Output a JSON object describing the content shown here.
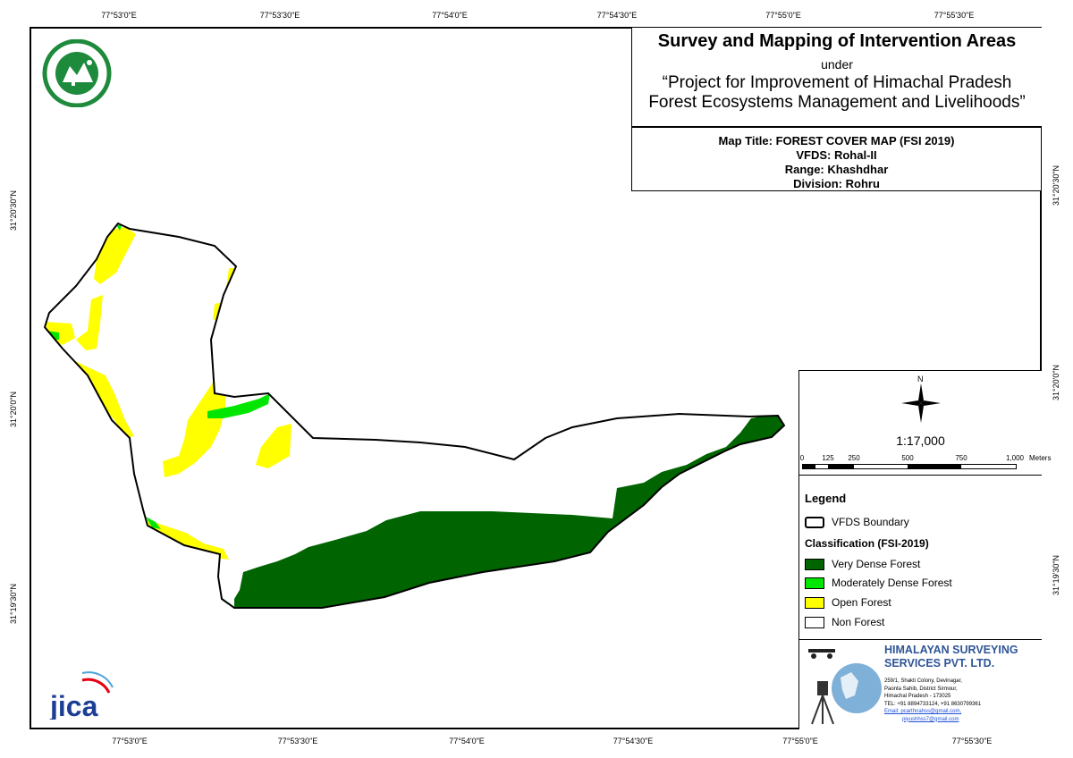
{
  "coords": {
    "top": [
      "77°53'0\"E",
      "77°53'30\"E",
      "77°54'0\"E",
      "77°54'30\"E",
      "77°55'0\"E",
      "77°55'30\"E"
    ],
    "bottom": [
      "77°53'0\"E",
      "77°53'30\"E",
      "77°54'0\"E",
      "77°54'30\"E",
      "77°55'0\"E",
      "77°55'30\"E"
    ],
    "left": [
      "31°20'30\"N",
      "31°20'0\"N",
      "31°19'30\"N"
    ],
    "right": [
      "31°20'30\"N",
      "31°20'0\"N",
      "31°19'30\"N"
    ]
  },
  "title": {
    "main": "Survey and Mapping of Intervention Areas",
    "under": "under",
    "project_line1": "“Project for Improvement of Himachal Pradesh",
    "project_line2": "Forest Ecosystems Management and Livelihoods”"
  },
  "info": {
    "map_title": "Map Title: FOREST COVER MAP (FSI 2019)",
    "vfds": "VFDS: Rohal-II",
    "range": "Range: Khashdhar",
    "division": "Division: Rohru"
  },
  "scale": {
    "north": "N",
    "ratio": "1:17,000",
    "labels": [
      "0",
      "125",
      "250",
      "500",
      "750",
      "1,000"
    ],
    "unit": "Meters"
  },
  "legend": {
    "title": "Legend",
    "boundary": "VFDS Boundary",
    "classification": "Classification (FSI-2019)",
    "classes": [
      {
        "label": "Very Dense Forest",
        "color": "#006400"
      },
      {
        "label": "Moderately Dense Forest",
        "color": "#00e600"
      },
      {
        "label": "Open Forest",
        "color": "#ffff00"
      },
      {
        "label": "Non Forest",
        "color": "#ffffff"
      }
    ]
  },
  "company": {
    "name_line1": "HIMALAYAN SURVEYING",
    "name_line2": "SERVICES PVT. LTD.",
    "addr1": "259/1, Shakti Colony, Devinagar,",
    "addr2": "Paonta Sahib, District Sirmour,",
    "addr3": "Himachal Pradesh - 173025",
    "tel": "TEL: +91 8894733124, +91 8630799361",
    "email1": "Email: pcarthnahss@gmail.com,",
    "email2": "piyushhss7@gmail.com"
  },
  "logos": {
    "jica": "JICA",
    "forest_dept": "HP Forest Department seal"
  },
  "colors": {
    "very_dense": "#006400",
    "moderately_dense": "#00e600",
    "open": "#ffff00",
    "company_blue": "#2f5597"
  }
}
